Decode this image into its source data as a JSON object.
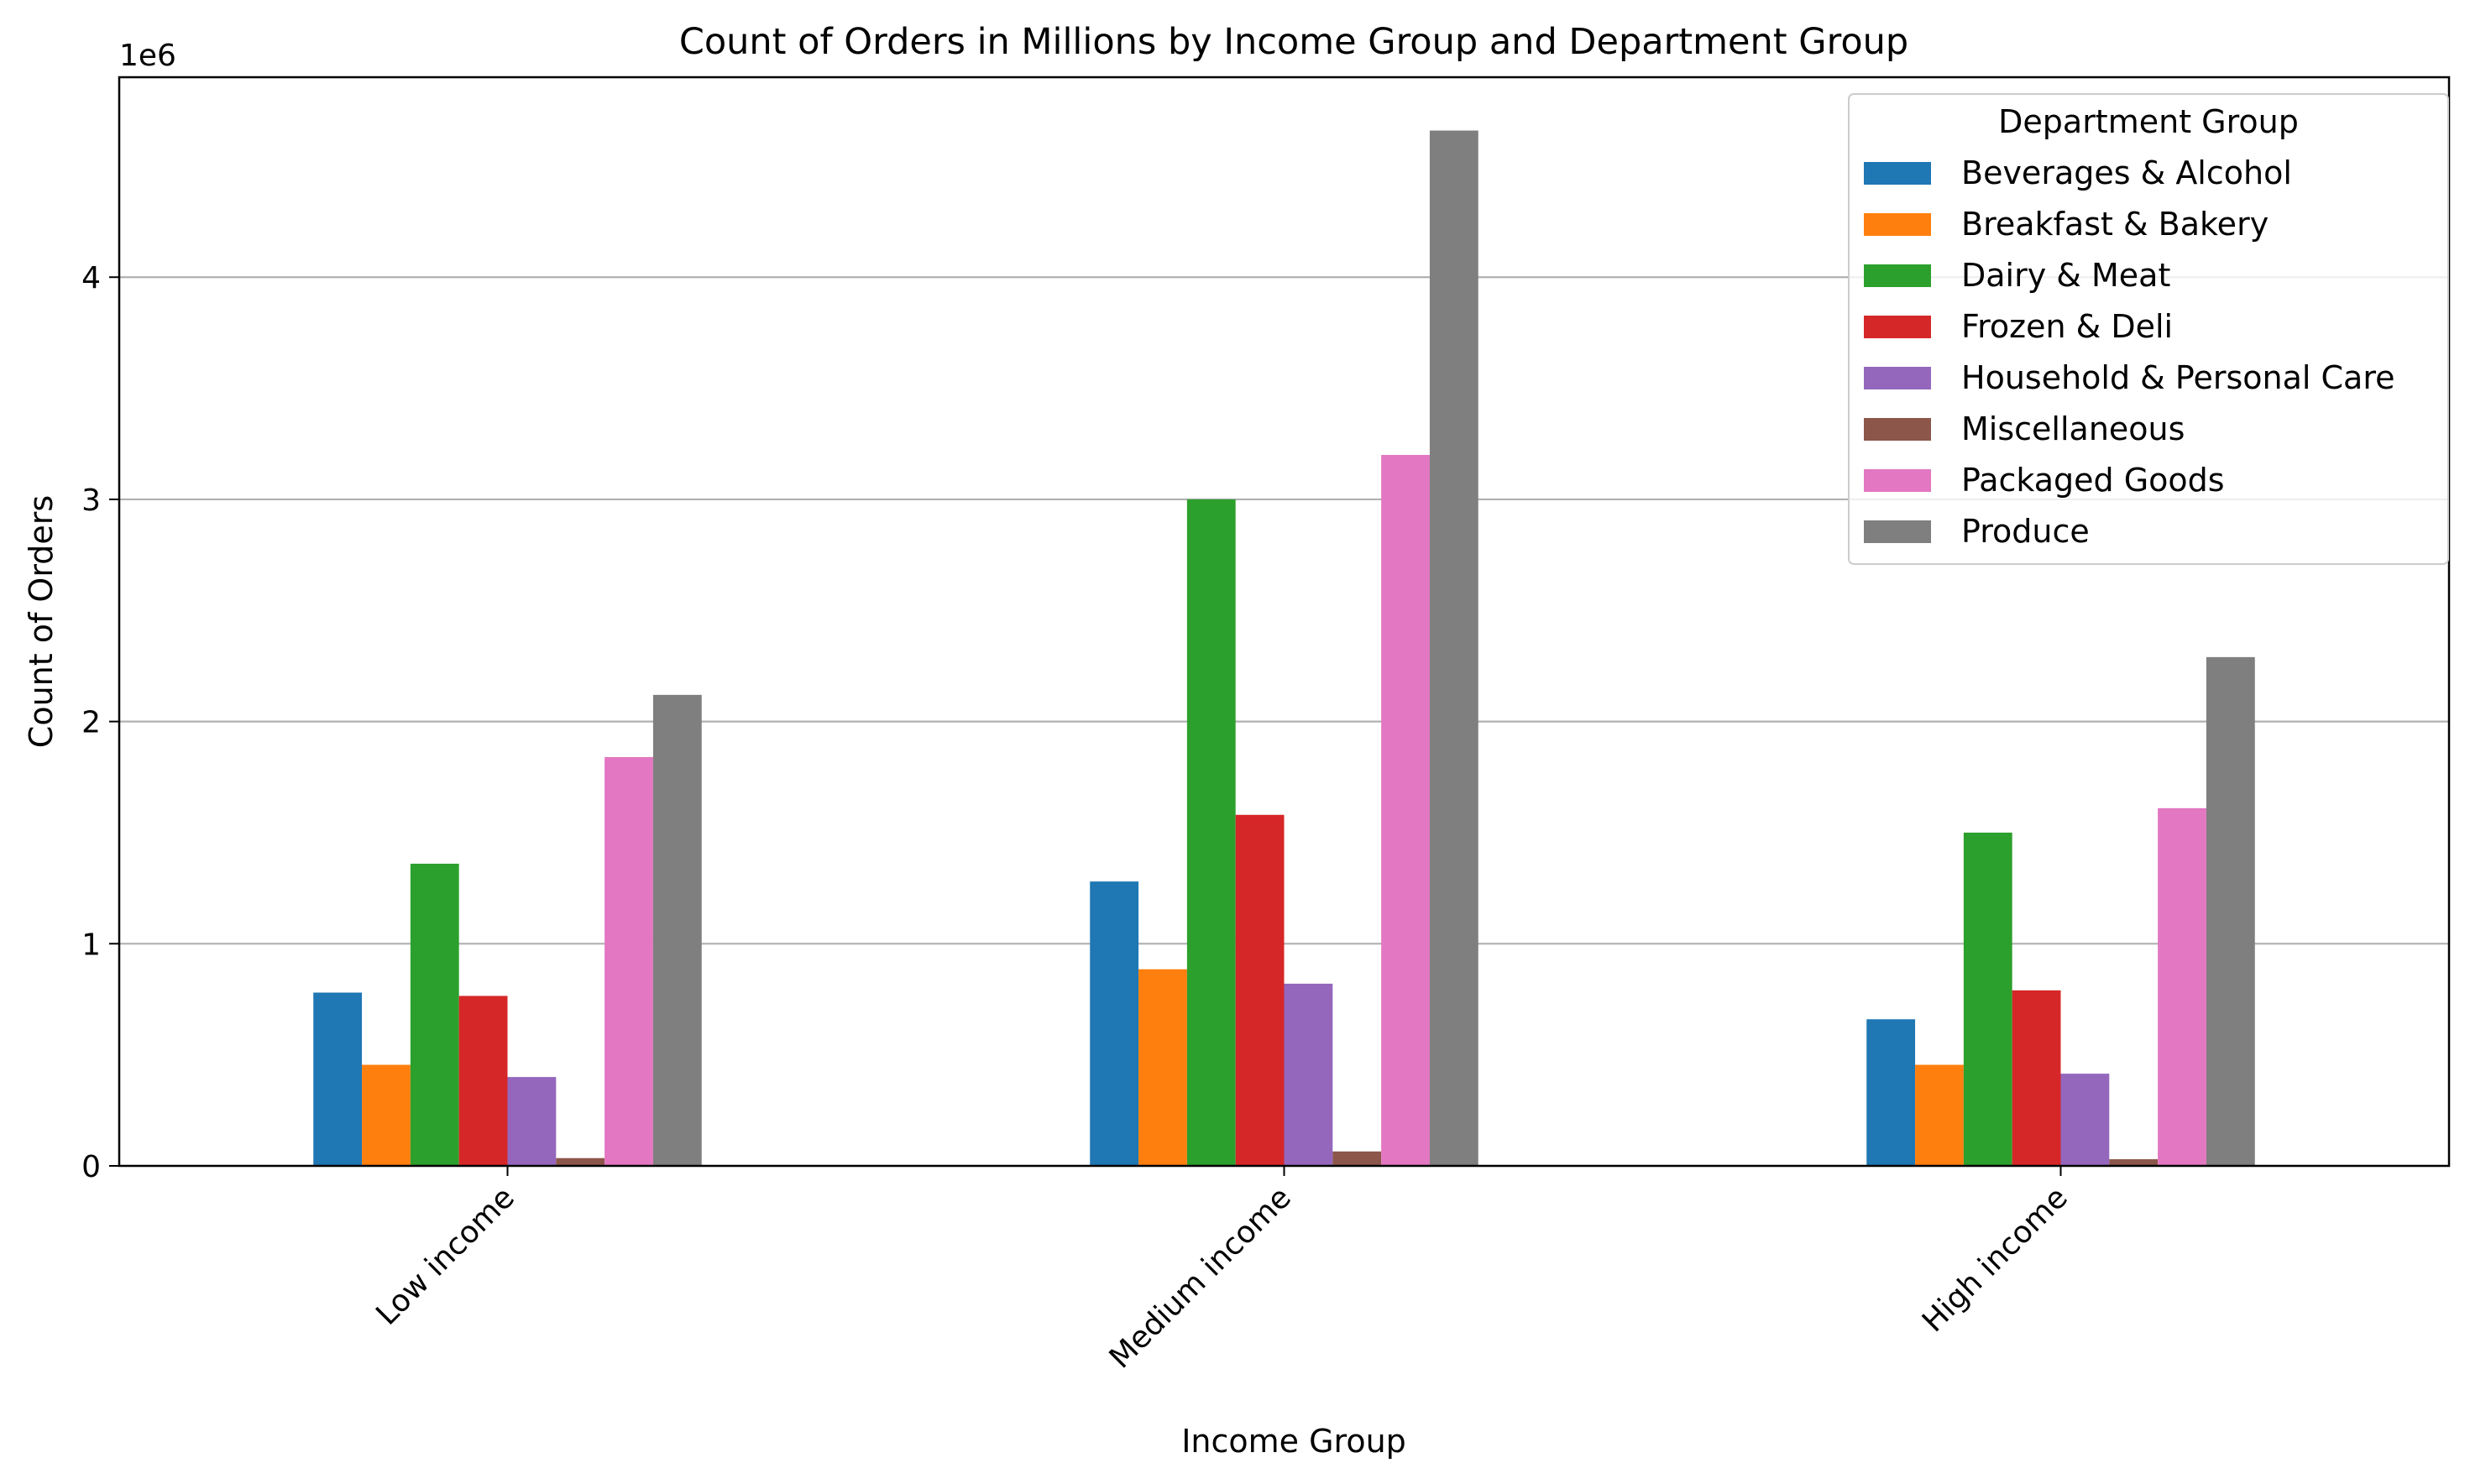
{
  "chart_data": {
    "type": "bar",
    "title": "Count of Orders in Millions by Income Group and Department Group",
    "xlabel": "Income Group",
    "ylabel": "Count of Orders",
    "y_offset_label": "1e6",
    "y_scale": 1000000,
    "ylim": [
      0,
      4900000
    ],
    "yticks": [
      0,
      1000000,
      2000000,
      3000000,
      4000000
    ],
    "ytick_labels": [
      "0",
      "1",
      "2",
      "3",
      "4"
    ],
    "grid": "y-major",
    "legend_title": "Department Group",
    "legend_position": "top-right",
    "categories": [
      "Low income",
      "Medium income",
      "High income"
    ],
    "series": [
      {
        "name": "Beverages & Alcohol",
        "color": "#1f77b4",
        "values": [
          780000,
          1280000,
          660000
        ]
      },
      {
        "name": "Breakfast & Bakery",
        "color": "#ff7f0e",
        "values": [
          455000,
          885000,
          455000
        ]
      },
      {
        "name": "Dairy & Meat",
        "color": "#2ca02c",
        "values": [
          1360000,
          3000000,
          1500000
        ]
      },
      {
        "name": "Frozen & Deli",
        "color": "#d62728",
        "values": [
          765000,
          1580000,
          790000
        ]
      },
      {
        "name": "Household & Personal Care",
        "color": "#9467bd",
        "values": [
          400000,
          820000,
          415000
        ]
      },
      {
        "name": "Miscellaneous",
        "color": "#8c564b",
        "values": [
          35000,
          65000,
          30000
        ]
      },
      {
        "name": "Packaged Goods",
        "color": "#e377c2",
        "values": [
          1840000,
          3200000,
          1610000
        ]
      },
      {
        "name": "Produce",
        "color": "#7f7f7f",
        "values": [
          2120000,
          4660000,
          2290000
        ]
      }
    ]
  }
}
